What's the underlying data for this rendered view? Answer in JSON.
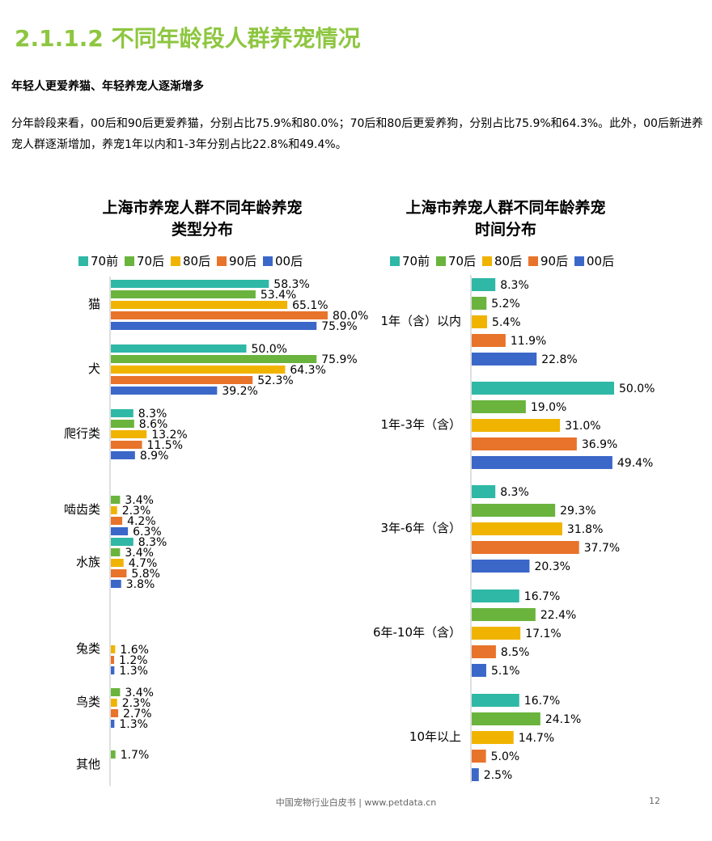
{
  "section_heading": "2.1.1.2 不同年龄段人群养宠情况",
  "subheading": "年轻人更爱养猫、年轻养宠人逐渐增多",
  "paragraph": "分年龄段来看，00后和90后更爱养猫，分别占比75.9%和80.0%；70后和80后更爱养狗，分别占比75.9%和64.3%。此外，00后新进养宠人群逐渐增加，养宠1年以内和1-3年分别占比22.8%和49.4%。",
  "footer": "中国宠物行业白皮书 | www.petdata.cn",
  "page_number": "12",
  "colors": {
    "heading": "#8dc63f",
    "70前": "#2fb8a6",
    "70后": "#6ab43e",
    "80后": "#f0b400",
    "90后": "#e8732a",
    "00后": "#3b67c9"
  },
  "chart_data": [
    {
      "type": "bar",
      "orientation": "horizontal",
      "title": "上海市养宠人群不同年龄养宠类型分布",
      "title_lines": [
        "上海市养宠人群不同年龄养宠",
        "类型分布"
      ],
      "legend_position": "top",
      "categories": [
        "猫",
        "犬",
        "爬行类",
        "啮齿类",
        "水族",
        "兔类",
        "鸟类",
        "其他"
      ],
      "series": [
        {
          "name": "70前",
          "values": [
            58.3,
            50.0,
            8.3,
            null,
            8.3,
            null,
            null,
            null
          ],
          "labels": [
            "58.3%",
            "50.0%",
            "8.3%",
            "",
            "8.3%",
            "",
            "",
            ""
          ]
        },
        {
          "name": "70后",
          "values": [
            53.4,
            75.9,
            8.6,
            3.4,
            3.4,
            null,
            3.4,
            1.7
          ],
          "labels": [
            "53.4%",
            "75.9%",
            "8.6%",
            "3.4%",
            "3.4%",
            "",
            "3.4%",
            "1.7%"
          ]
        },
        {
          "name": "80后",
          "values": [
            65.1,
            64.3,
            13.2,
            2.3,
            4.7,
            1.6,
            2.3,
            null
          ],
          "labels": [
            "65.1%",
            "64.3%",
            "13.2%",
            "2.3%",
            "4.7%",
            "1.6%",
            "2.3%",
            ""
          ]
        },
        {
          "name": "90后",
          "values": [
            80.0,
            52.3,
            11.5,
            4.2,
            5.8,
            1.2,
            2.7,
            null
          ],
          "labels": [
            "80.0%",
            "52.3%",
            "11.5%",
            "4.2%",
            "5.8%",
            "1.2%",
            "2.7%",
            ""
          ]
        },
        {
          "name": "00后",
          "values": [
            75.9,
            39.2,
            8.9,
            6.3,
            3.8,
            1.3,
            1.3,
            null
          ],
          "labels": [
            "75.9%",
            "39.2%",
            "8.9%",
            "6.3%",
            "3.8%",
            "1.3%",
            "1.3%",
            ""
          ]
        }
      ],
      "xlim": [
        0,
        100
      ]
    },
    {
      "type": "bar",
      "orientation": "horizontal",
      "title": "上海市养宠人群不同年龄养宠时间分布",
      "title_lines": [
        "上海市养宠人群不同年龄养宠",
        "时间分布"
      ],
      "legend_position": "top",
      "categories": [
        "1年（含）以内",
        "1年-3年（含）",
        "3年-6年（含）",
        "6年-10年（含）",
        "10年以上"
      ],
      "series": [
        {
          "name": "70前",
          "values": [
            8.3,
            50.0,
            8.3,
            16.7,
            16.7
          ],
          "labels": [
            "8.3%",
            "50.0%",
            "8.3%",
            "16.7%",
            "16.7%"
          ]
        },
        {
          "name": "70后",
          "values": [
            5.2,
            19.0,
            29.3,
            22.4,
            24.1
          ],
          "labels": [
            "5.2%",
            "19.0%",
            "29.3%",
            "22.4%",
            "24.1%"
          ]
        },
        {
          "name": "80后",
          "values": [
            5.4,
            31.0,
            31.8,
            17.1,
            14.7
          ],
          "labels": [
            "5.4%",
            "31.0%",
            "31.8%",
            "17.1%",
            "14.7%"
          ]
        },
        {
          "name": "90后",
          "values": [
            11.9,
            36.9,
            37.7,
            8.5,
            5.0
          ],
          "labels": [
            "11.9%",
            "36.9%",
            "37.7%",
            "8.5%",
            "5.0%"
          ]
        },
        {
          "name": "00后",
          "values": [
            22.8,
            49.4,
            20.3,
            5.1,
            2.5
          ],
          "labels": [
            "22.8%",
            "49.4%",
            "20.3%",
            "5.1%",
            "2.5%"
          ]
        }
      ],
      "xlim": [
        0,
        60
      ]
    }
  ]
}
